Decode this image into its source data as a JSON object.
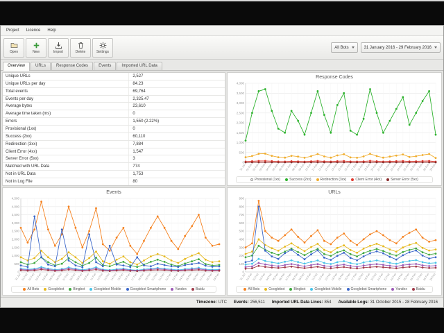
{
  "window": {
    "menu": [
      "Project",
      "Licence",
      "Help"
    ],
    "toolbar": {
      "buttons": [
        {
          "label": "Open",
          "icon": "folder-open-icon"
        },
        {
          "label": "New",
          "icon": "plus-icon"
        },
        {
          "label": "Import",
          "icon": "import-icon"
        },
        {
          "label": "Delete",
          "icon": "trash-icon"
        },
        {
          "label": "Settings",
          "icon": "gear-icon"
        }
      ],
      "bot_filter": "All Bots",
      "date_range": "31 January 2016 - 29 February 2016"
    },
    "tabs": [
      "Overview",
      "URLs",
      "Response Codes",
      "Events",
      "Imported URL Data"
    ],
    "active_tab": "Overview"
  },
  "overview_table": {
    "rows": [
      {
        "label": "Unique URLs",
        "value": "2,527"
      },
      {
        "label": "Unique URLs per day",
        "value": "84.23"
      },
      {
        "label": "Total events",
        "value": "69,764"
      },
      {
        "label": "Events per day",
        "value": "2,325.47"
      },
      {
        "label": "Average bytes",
        "value": "23,610"
      },
      {
        "label": "Average time taken (ms)",
        "value": "0"
      },
      {
        "label": "Errors",
        "value": "1,550 (2.22%)"
      },
      {
        "label": "Provisional (1xx)",
        "value": "0"
      },
      {
        "label": "Success (2xx)",
        "value": "60,110"
      },
      {
        "label": "Redirection (3xx)",
        "value": "7,884"
      },
      {
        "label": "Client Error (4xx)",
        "value": "1,547"
      },
      {
        "label": "Server Error (5xx)",
        "value": "3"
      },
      {
        "label": "Matched with URL Data",
        "value": "774"
      },
      {
        "label": "Not in URL Data",
        "value": "1,753"
      },
      {
        "label": "Not in Log File",
        "value": "80"
      }
    ]
  },
  "statusbar": {
    "segments": [
      {
        "label": "Timezone:",
        "value": "UTC"
      },
      {
        "label": "Events:",
        "value": "256,511"
      },
      {
        "label": "Imported URL Data Lines:",
        "value": "854"
      },
      {
        "label": "Available Logs:",
        "value": "31 October 2015 - 28 February 2016"
      }
    ]
  },
  "colors": {
    "success": "#2db22d",
    "redirection": "#f0ad2e",
    "client_error": "#e03c31",
    "server_error": "#8b2e2e",
    "provisional": "#9a9a9a",
    "all_bots": "#f58220",
    "googlebot": "#e6b91e",
    "bingbot": "#3fa83f",
    "googlebot_mobile": "#49c3e8",
    "googlebot_smartphone": "#3a66c9",
    "yandex": "#9b59b6",
    "baidu": "#a03a4a"
  },
  "chart_data": [
    {
      "type": "line",
      "title": "Response Codes",
      "legend_position": "bottom",
      "grid": "horizontal",
      "ylim": [
        0,
        4000
      ],
      "ytick_step": 500,
      "x": [
        "31 Jan",
        "01 Feb",
        "02 Feb",
        "03 Feb",
        "04 Feb",
        "05 Feb",
        "06 Feb",
        "07 Feb",
        "08 Feb",
        "09 Feb",
        "10 Feb",
        "11 Feb",
        "12 Feb",
        "13 Feb",
        "14 Feb",
        "15 Feb",
        "16 Feb",
        "17 Feb",
        "18 Feb",
        "19 Feb",
        "20 Feb",
        "21 Feb",
        "22 Feb",
        "23 Feb",
        "24 Feb",
        "25 Feb",
        "26 Feb",
        "27 Feb",
        "28 Feb",
        "29 Feb"
      ],
      "series": [
        {
          "name": "Provisional (1xx)",
          "color": "#9a9a9a",
          "hollow": true,
          "values": [
            0,
            0,
            0,
            0,
            0,
            0,
            0,
            0,
            0,
            0,
            0,
            0,
            0,
            0,
            0,
            0,
            0,
            0,
            0,
            0,
            0,
            0,
            0,
            0,
            0,
            0,
            0,
            0,
            0,
            0
          ]
        },
        {
          "name": "Success (2xx)",
          "color": "#2db22d",
          "values": [
            1100,
            2500,
            3600,
            3700,
            2600,
            1700,
            1500,
            2600,
            2100,
            1400,
            2500,
            3600,
            2400,
            1500,
            2900,
            3500,
            1600,
            1400,
            2200,
            3700,
            2500,
            1500,
            2100,
            2700,
            3300,
            1900,
            2500,
            3100,
            3600,
            1400
          ]
        },
        {
          "name": "Redirection (3xx)",
          "color": "#f0ad2e",
          "values": [
            260,
            320,
            430,
            440,
            330,
            260,
            240,
            330,
            290,
            230,
            310,
            420,
            300,
            240,
            350,
            410,
            250,
            230,
            300,
            430,
            320,
            240,
            290,
            340,
            400,
            270,
            310,
            370,
            420,
            220
          ]
        },
        {
          "name": "Client Error (4xx)",
          "color": "#e03c31",
          "values": [
            40,
            55,
            70,
            75,
            58,
            42,
            38,
            56,
            48,
            36,
            52,
            70,
            50,
            40,
            60,
            68,
            42,
            38,
            50,
            72,
            55,
            40,
            48,
            58,
            66,
            45,
            52,
            62,
            70,
            35
          ]
        },
        {
          "name": "Server Error (5xx)",
          "color": "#8b2e2e",
          "values": [
            0,
            0,
            0,
            0,
            0,
            0,
            0,
            0,
            0,
            0,
            0,
            1,
            0,
            0,
            0,
            0,
            0,
            0,
            0,
            1,
            0,
            0,
            0,
            0,
            0,
            0,
            0,
            1,
            0,
            0
          ]
        }
      ]
    },
    {
      "type": "line",
      "title": "Events",
      "legend_position": "bottom",
      "grid": "horizontal",
      "ylim": [
        0,
        4500
      ],
      "ytick_step": 500,
      "x": [
        "31 Jan",
        "01 Feb",
        "02 Feb",
        "03 Feb",
        "04 Feb",
        "05 Feb",
        "06 Feb",
        "07 Feb",
        "08 Feb",
        "09 Feb",
        "10 Feb",
        "11 Feb",
        "12 Feb",
        "13 Feb",
        "14 Feb",
        "15 Feb",
        "16 Feb",
        "17 Feb",
        "18 Feb",
        "19 Feb",
        "20 Feb",
        "21 Feb",
        "22 Feb",
        "23 Feb",
        "24 Feb",
        "25 Feb",
        "26 Feb",
        "27 Feb",
        "28 Feb",
        "29 Feb"
      ],
      "series": [
        {
          "name": "All Bots",
          "color": "#f58220",
          "values": [
            2700,
            1800,
            2600,
            4300,
            2600,
            1600,
            2300,
            4000,
            2700,
            1500,
            2500,
            3900,
            1700,
            1300,
            2100,
            2700,
            1600,
            1100,
            1900,
            2700,
            3400,
            2700,
            1900,
            1400,
            2200,
            2800,
            3500,
            2100,
            1600,
            1700
          ]
        },
        {
          "name": "Googlebot",
          "color": "#e6b91e",
          "values": [
            900,
            700,
            850,
            1300,
            900,
            600,
            800,
            1200,
            900,
            550,
            850,
            1250,
            650,
            500,
            750,
            950,
            600,
            450,
            700,
            950,
            1100,
            950,
            700,
            550,
            800,
            1000,
            1150,
            750,
            600,
            650
          ]
        },
        {
          "name": "Bingbot",
          "color": "#3fa83f",
          "values": [
            600,
            450,
            550,
            900,
            600,
            400,
            500,
            850,
            600,
            380,
            550,
            880,
            420,
            350,
            500,
            620,
            400,
            300,
            450,
            620,
            750,
            620,
            450,
            360,
            520,
            650,
            780,
            480,
            400,
            430
          ]
        },
        {
          "name": "Googlebot Mobile",
          "color": "#49c3e8",
          "values": [
            200,
            160,
            190,
            300,
            210,
            140,
            180,
            280,
            200,
            130,
            190,
            290,
            150,
            120,
            170,
            210,
            140,
            110,
            160,
            210,
            250,
            210,
            160,
            125,
            180,
            220,
            260,
            165,
            140,
            150
          ]
        },
        {
          "name": "Googlebot Smartphone",
          "color": "#3a66c9",
          "values": [
            400,
            300,
            3400,
            900,
            450,
            350,
            2600,
            700,
            400,
            280,
            2300,
            600,
            350,
            1600,
            450,
            400,
            300,
            900,
            400,
            350,
            500,
            420,
            350,
            300,
            420,
            480,
            550,
            380,
            320,
            340
          ]
        },
        {
          "name": "Yandex",
          "color": "#9b59b6",
          "values": [
            150,
            120,
            140,
            220,
            150,
            100,
            130,
            210,
            150,
            95,
            140,
            215,
            110,
            90,
            125,
            155,
            105,
            80,
            120,
            155,
            185,
            155,
            115,
            92,
            132,
            162,
            192,
            122,
            102,
            110
          ]
        },
        {
          "name": "Baidu",
          "color": "#a03a4a",
          "values": [
            100,
            80,
            95,
            150,
            100,
            70,
            90,
            140,
            100,
            65,
            95,
            145,
            75,
            60,
            85,
            105,
            70,
            55,
            80,
            105,
            125,
            105,
            78,
            62,
            88,
            108,
            128,
            82,
            68,
            75
          ]
        }
      ]
    },
    {
      "type": "line",
      "title": "URLs",
      "legend_position": "bottom",
      "grid": "horizontal",
      "ylim": [
        0,
        900
      ],
      "ytick_step": 100,
      "x": [
        "31 Jan",
        "01 Feb",
        "02 Feb",
        "03 Feb",
        "04 Feb",
        "05 Feb",
        "06 Feb",
        "07 Feb",
        "08 Feb",
        "09 Feb",
        "10 Feb",
        "11 Feb",
        "12 Feb",
        "13 Feb",
        "14 Feb",
        "15 Feb",
        "16 Feb",
        "17 Feb",
        "18 Feb",
        "19 Feb",
        "20 Feb",
        "21 Feb",
        "22 Feb",
        "23 Feb",
        "24 Feb",
        "25 Feb",
        "26 Feb",
        "27 Feb",
        "28 Feb",
        "29 Feb"
      ],
      "series": [
        {
          "name": "All Bots",
          "color": "#f58220",
          "values": [
            300,
            350,
            870,
            500,
            420,
            380,
            450,
            520,
            430,
            360,
            440,
            510,
            380,
            340,
            420,
            470,
            380,
            330,
            400,
            460,
            500,
            450,
            390,
            350,
            430,
            480,
            520,
            420,
            370,
            390
          ]
        },
        {
          "name": "Googlebot",
          "color": "#e6b91e",
          "values": [
            220,
            250,
            400,
            330,
            290,
            260,
            310,
            350,
            300,
            255,
            305,
            345,
            270,
            240,
            295,
            325,
            268,
            235,
            285,
            320,
            345,
            315,
            275,
            248,
            300,
            332,
            355,
            295,
            262,
            275
          ]
        },
        {
          "name": "Bingbot",
          "color": "#3fa83f",
          "values": [
            180,
            200,
            320,
            270,
            235,
            210,
            250,
            285,
            243,
            206,
            248,
            282,
            220,
            196,
            240,
            264,
            218,
            190,
            232,
            260,
            282,
            256,
            224,
            200,
            244,
            270,
            288,
            240,
            212,
            224
          ]
        },
        {
          "name": "Googlebot Mobile",
          "color": "#49c3e8",
          "values": [
            90,
            100,
            160,
            135,
            118,
            105,
            125,
            142,
            121,
            103,
            124,
            141,
            110,
            98,
            120,
            132,
            109,
            95,
            116,
            130,
            141,
            128,
            112,
            100,
            122,
            135,
            144,
            120,
            106,
            112
          ]
        },
        {
          "name": "Googlebot Smartphone",
          "color": "#3a66c9",
          "values": [
            120,
            140,
            800,
            260,
            190,
            160,
            230,
            270,
            210,
            155,
            215,
            265,
            175,
            148,
            198,
            235,
            172,
            142,
            190,
            228,
            252,
            228,
            185,
            152,
            205,
            240,
            262,
            200,
            165,
            180
          ]
        },
        {
          "name": "Yandex",
          "color": "#9b59b6",
          "values": [
            60,
            68,
            110,
            92,
            80,
            71,
            85,
            97,
            82,
            70,
            84,
            96,
            75,
            66,
            81,
            90,
            74,
            64,
            79,
            88,
            96,
            87,
            76,
            68,
            83,
            92,
            98,
            81,
            72,
            76
          ]
        },
        {
          "name": "Baidu",
          "color": "#a03a4a",
          "values": [
            40,
            45,
            75,
            62,
            54,
            48,
            57,
            65,
            55,
            47,
            56,
            64,
            50,
            44,
            54,
            60,
            49,
            43,
            53,
            59,
            64,
            58,
            51,
            45,
            55,
            61,
            66,
            54,
            48,
            51
          ]
        }
      ]
    }
  ]
}
